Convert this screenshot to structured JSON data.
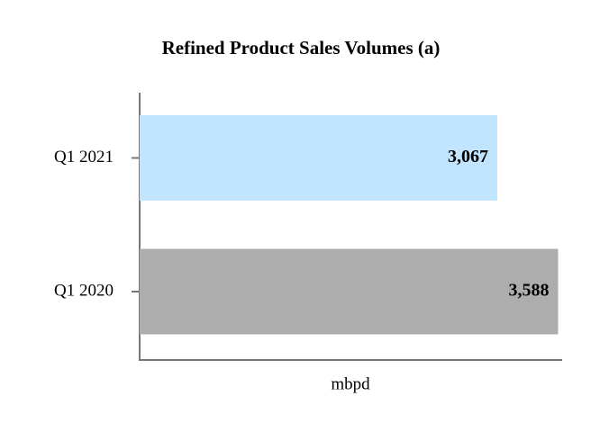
{
  "chart_data": {
    "type": "bar",
    "orientation": "horizontal",
    "title": "Refined Product Sales Volumes (a)",
    "categories": [
      "Q1 2021",
      "Q1 2020"
    ],
    "values": [
      3067,
      3588
    ],
    "value_labels": [
      "3,067",
      "3,588"
    ],
    "colors": [
      "#c1e4ff",
      "#adadad"
    ],
    "xlabel": "mbpd",
    "xlim": [
      0,
      3615
    ]
  }
}
